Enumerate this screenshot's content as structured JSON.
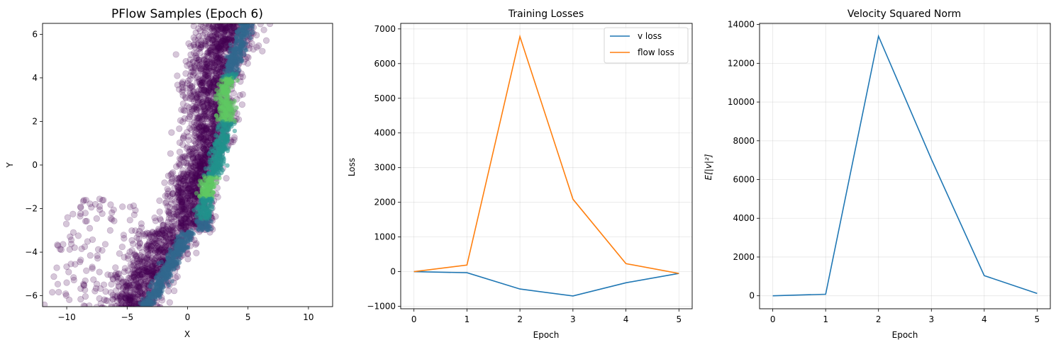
{
  "colors": {
    "v_loss": "#1f77b4",
    "flow_loss": "#ff7f0e",
    "scatter_low": "#440154",
    "scatter_mid": "#21918c",
    "scatter_high": "#5ec962"
  },
  "chart_data": [
    {
      "type": "scatter",
      "title": "PFlow Samples (Epoch 6)",
      "xlabel": "X",
      "ylabel": "Y",
      "xlim": [
        -12,
        12
      ],
      "ylim": [
        -6.5,
        6.5
      ],
      "xticks": [
        -10,
        -5,
        0,
        5,
        10
      ],
      "yticks": [
        -6,
        -4,
        -2,
        0,
        2,
        4,
        6
      ],
      "xtick_labels": [
        "−10",
        "−5",
        "0",
        "5",
        "10"
      ],
      "ytick_labels": [
        "−6",
        "−4",
        "−2",
        "0",
        "2",
        "4",
        "6"
      ],
      "grid": false,
      "description_points": "dense diagonal band from (-3,-6.5) to (5,6.5), density-colored viridis, peak density along ridge near x≈3, y≈-1 to 3"
    },
    {
      "type": "line",
      "title": "Training Losses",
      "xlabel": "Epoch",
      "ylabel": "Loss",
      "x": [
        0,
        1,
        2,
        3,
        4,
        5
      ],
      "xlim": [
        -0.25,
        5.25
      ],
      "ylim": [
        -1070,
        7160
      ],
      "xticks": [
        0,
        1,
        2,
        3,
        4,
        5
      ],
      "yticks": [
        -1000,
        0,
        1000,
        2000,
        3000,
        4000,
        5000,
        6000,
        7000
      ],
      "ytick_labels": [
        "−1000",
        "0",
        "1000",
        "2000",
        "3000",
        "4000",
        "5000",
        "6000",
        "7000"
      ],
      "grid": true,
      "legend": "top-right",
      "series": [
        {
          "name": "v loss",
          "values": [
            0,
            -30,
            -500,
            -700,
            -320,
            -50
          ]
        },
        {
          "name": "flow loss",
          "values": [
            0,
            190,
            6780,
            2090,
            230,
            -50
          ]
        }
      ]
    },
    {
      "type": "line",
      "title": "Velocity Squared Norm",
      "xlabel": "Epoch",
      "ylabel": "E[|v|²]",
      "x": [
        0,
        1,
        2,
        3,
        4,
        5
      ],
      "xlim": [
        -0.25,
        5.25
      ],
      "ylim": [
        -670,
        14060
      ],
      "xticks": [
        0,
        1,
        2,
        3,
        4,
        5
      ],
      "yticks": [
        0,
        2000,
        4000,
        6000,
        8000,
        10000,
        12000,
        14000
      ],
      "ytick_labels": [
        "0",
        "2000",
        "4000",
        "6000",
        "8000",
        "10000",
        "12000",
        "14000"
      ],
      "grid": true,
      "series": [
        {
          "name": "velocity squared norm",
          "values": [
            0,
            80,
            13400,
            7050,
            1040,
            120
          ]
        }
      ]
    }
  ]
}
